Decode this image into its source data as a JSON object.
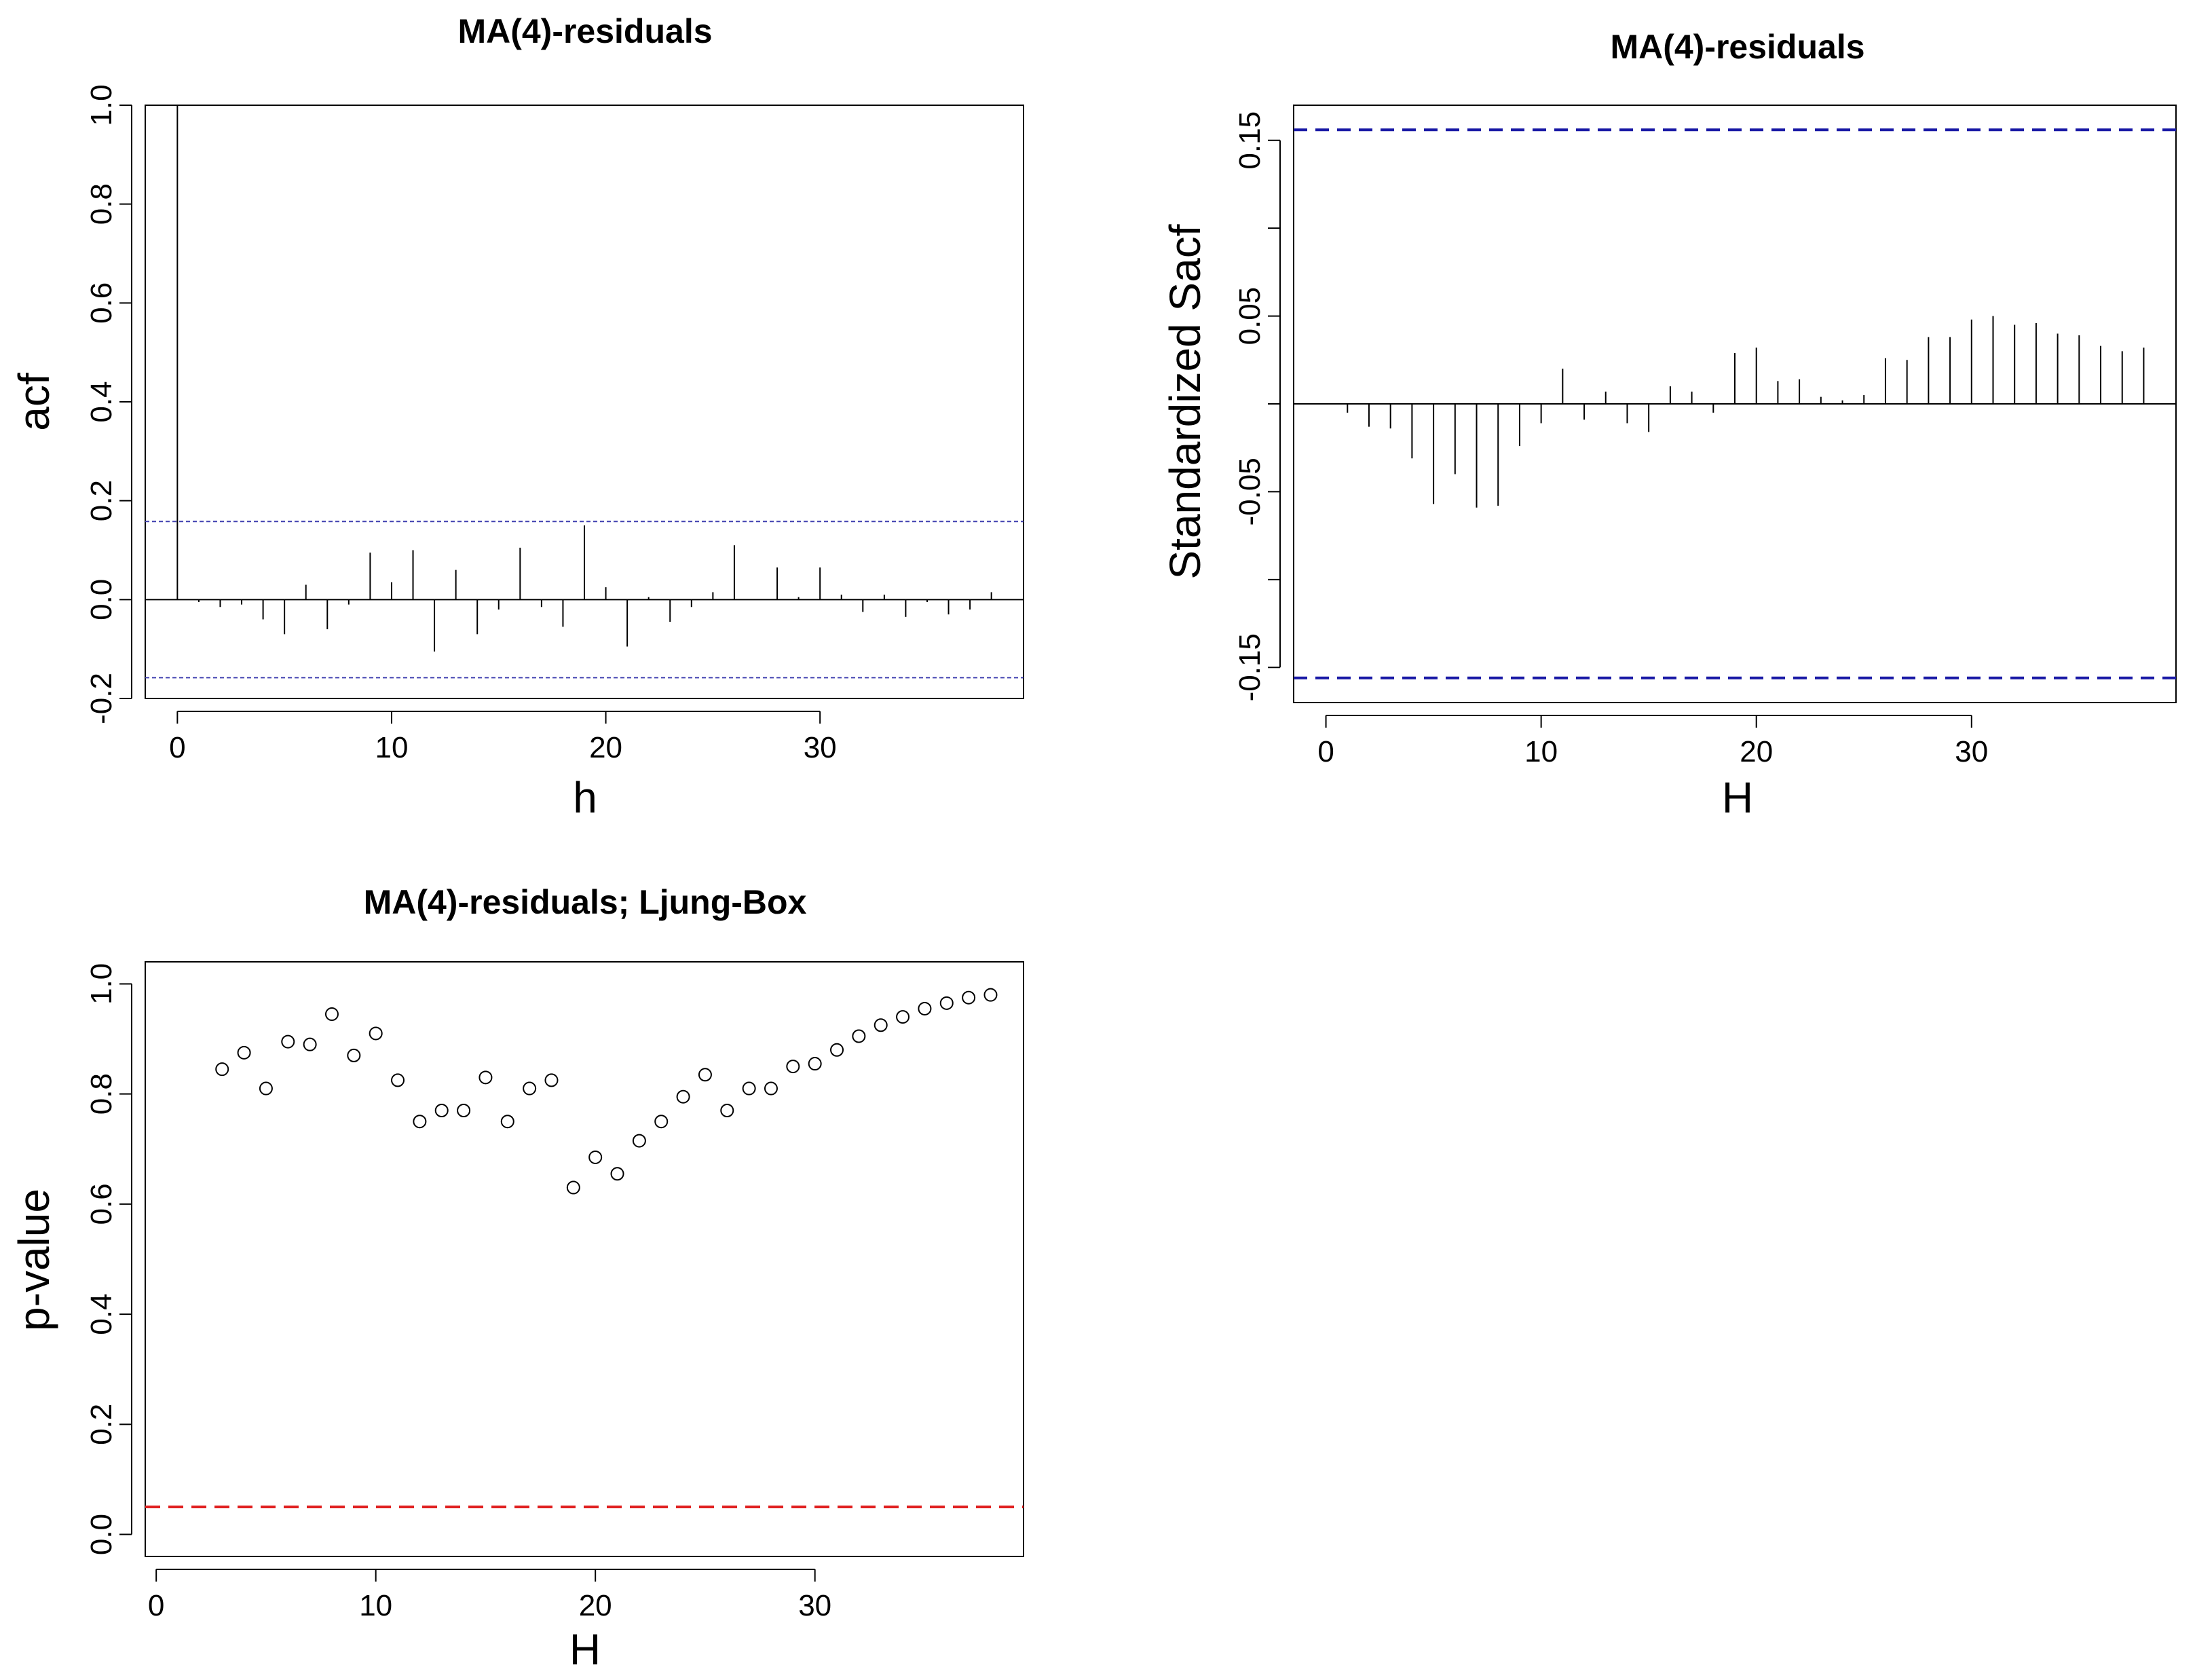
{
  "chart_data": [
    {
      "type": "bar",
      "title": "MA(4)-residuals",
      "xlabel": "h",
      "ylabel": "acf",
      "xlim": [
        -1.5,
        39.5
      ],
      "ylim": [
        -0.2,
        1.0
      ],
      "xticks": [
        0,
        10,
        20,
        30
      ],
      "xtick_labels": [
        "0",
        "10",
        "20",
        "30"
      ],
      "yticks": [
        -0.2,
        0.0,
        0.2,
        0.4,
        0.6,
        0.8,
        1.0
      ],
      "ytick_labels": [
        "-0.2",
        "0.0",
        "0.2",
        "0.4",
        "0.6",
        "0.8",
        "1.0"
      ],
      "x": [
        0,
        1,
        2,
        3,
        4,
        5,
        6,
        7,
        8,
        9,
        10,
        11,
        12,
        13,
        14,
        15,
        16,
        17,
        18,
        19,
        20,
        21,
        22,
        23,
        24,
        25,
        26,
        27,
        28,
        29,
        30,
        31,
        32,
        33,
        34,
        35,
        36,
        37,
        38
      ],
      "values": [
        1.0,
        -0.005,
        -0.015,
        -0.01,
        -0.04,
        -0.07,
        0.03,
        -0.06,
        -0.01,
        0.095,
        0.035,
        0.1,
        -0.105,
        0.06,
        -0.07,
        -0.02,
        0.105,
        -0.015,
        -0.055,
        0.15,
        0.025,
        -0.095,
        0.005,
        -0.045,
        -0.015,
        0.015,
        0.11,
        0.0,
        0.065,
        0.005,
        0.065,
        0.01,
        -0.025,
        0.01,
        -0.035,
        -0.005,
        -0.03,
        -0.02,
        0.015
      ],
      "hlines": [
        0.158,
        -0.158
      ],
      "hline_color": "#4040b0",
      "grid": false
    },
    {
      "type": "bar",
      "title": "MA(4)-residuals",
      "xlabel": "H",
      "ylabel": "Standardized Sacf",
      "xlim": [
        -1.5,
        39.5
      ],
      "ylim": [
        -0.17,
        0.17
      ],
      "xticks": [
        0,
        10,
        20,
        30
      ],
      "xtick_labels": [
        "0",
        "10",
        "20",
        "30"
      ],
      "yticks": [
        -0.15,
        -0.1,
        -0.05,
        0.0,
        0.05,
        0.1,
        0.15
      ],
      "ytick_labels": [
        "-0.15",
        "",
        "-0.05",
        "",
        "0.05",
        "",
        "0.15"
      ],
      "x": [
        1,
        2,
        3,
        4,
        5,
        6,
        7,
        8,
        9,
        10,
        11,
        12,
        13,
        14,
        15,
        16,
        17,
        18,
        19,
        20,
        21,
        22,
        23,
        24,
        25,
        26,
        27,
        28,
        29,
        30,
        31,
        32,
        33,
        34,
        35,
        36,
        37,
        38
      ],
      "values": [
        -0.005,
        -0.013,
        -0.014,
        -0.031,
        -0.057,
        -0.04,
        -0.059,
        -0.058,
        -0.024,
        -0.011,
        0.02,
        -0.009,
        0.007,
        -0.011,
        -0.016,
        0.01,
        0.007,
        -0.005,
        0.029,
        0.032,
        0.013,
        0.014,
        0.004,
        0.002,
        0.005,
        0.026,
        0.025,
        0.038,
        0.038,
        0.048,
        0.05,
        0.045,
        0.046,
        0.04,
        0.039,
        0.033,
        0.03,
        0.032
      ],
      "hlines": [
        0.156,
        -0.156
      ],
      "hline_color": "#1a1aa6",
      "grid": false
    },
    {
      "type": "scatter",
      "title": "MA(4)-residuals;  Ljung-Box",
      "xlabel": "H",
      "ylabel": "p-value",
      "xlim": [
        -0.5,
        39.5
      ],
      "ylim": [
        -0.04,
        1.04
      ],
      "xticks": [
        0,
        10,
        20,
        30
      ],
      "xtick_labels": [
        "0",
        "10",
        "20",
        "30"
      ],
      "yticks": [
        0.0,
        0.2,
        0.4,
        0.6,
        0.8,
        1.0
      ],
      "ytick_labels": [
        "0.0",
        "0.2",
        "0.4",
        "0.6",
        "0.8",
        "1.0"
      ],
      "x": [
        3,
        4,
        5,
        6,
        7,
        8,
        9,
        10,
        11,
        12,
        13,
        14,
        15,
        16,
        17,
        18,
        19,
        20,
        21,
        22,
        23,
        24,
        25,
        26,
        27,
        28,
        29,
        30,
        31,
        32,
        33,
        34,
        35,
        36,
        37,
        38
      ],
      "values": [
        0.845,
        0.875,
        0.81,
        0.895,
        0.89,
        0.945,
        0.87,
        0.91,
        0.825,
        0.75,
        0.77,
        0.77,
        0.83,
        0.75,
        0.81,
        0.825,
        0.63,
        0.685,
        0.655,
        0.715,
        0.75,
        0.795,
        0.835,
        0.77,
        0.81,
        0.81,
        0.85,
        0.855,
        0.88,
        0.905,
        0.925,
        0.94,
        0.955,
        0.965,
        0.975,
        0.98
      ],
      "hlines": [
        0.05
      ],
      "hline_color": "#e02020",
      "grid": false
    }
  ]
}
